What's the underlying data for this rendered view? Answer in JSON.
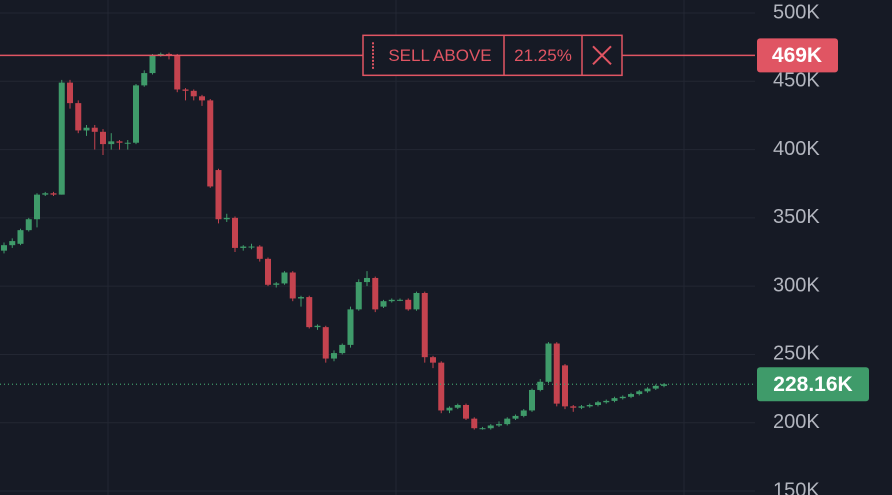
{
  "chart_data": {
    "type": "candlestick",
    "up_color": "#3f9b6a",
    "down_color": "#c4434f",
    "open": [
      326000,
      330000,
      331000,
      341000,
      349000,
      367000,
      368000,
      367000,
      449000,
      434000,
      414000,
      416000,
      413000,
      404000,
      406000,
      405000,
      405000,
      447000,
      456000,
      469000,
      470000,
      469000,
      444000,
      443000,
      439000,
      436000,
      385000,
      349000,
      350000,
      328000,
      329000,
      329000,
      320000,
      301000,
      302000,
      310000,
      291000,
      292000,
      270000,
      270000,
      247000,
      251000,
      257000,
      283000,
      303000,
      306000,
      285000,
      289000,
      290000,
      290000,
      283000,
      295000,
      248000,
      244000,
      209000,
      211000,
      213000,
      203000,
      196000,
      196000,
      198000,
      199000,
      203000,
      205000,
      209000,
      224000,
      230000,
      258000,
      242000,
      212000,
      211000,
      212000,
      213000,
      215000,
      216000,
      218000,
      219000,
      221000,
      223000,
      225000,
      227000
    ],
    "high": [
      332000,
      335000,
      342000,
      350000,
      368000,
      369000,
      369000,
      451000,
      451000,
      436000,
      418000,
      418000,
      415000,
      412000,
      407000,
      407000,
      448000,
      458000,
      470000,
      471000,
      471000,
      470000,
      445000,
      444000,
      440000,
      437000,
      386000,
      353000,
      351000,
      330000,
      331000,
      330000,
      321000,
      303000,
      311000,
      311000,
      293000,
      293000,
      272000,
      271000,
      253000,
      258000,
      285000,
      305000,
      311000,
      307000,
      290000,
      291000,
      291000,
      291000,
      296000,
      296000,
      249000,
      245000,
      212000,
      214000,
      214000,
      204000,
      197000,
      199000,
      201000,
      204000,
      206000,
      210000,
      225000,
      232000,
      259000,
      259000,
      243000,
      213000,
      213000,
      214000,
      216000,
      217000,
      219000,
      220000,
      222000,
      224000,
      226000,
      228000,
      229000
    ],
    "low": [
      324000,
      328000,
      330000,
      340000,
      343000,
      366000,
      366000,
      367000,
      430000,
      412000,
      410000,
      400000,
      396000,
      400000,
      400000,
      400000,
      404000,
      446000,
      455000,
      468000,
      466000,
      442000,
      436000,
      436000,
      432000,
      372000,
      346000,
      347000,
      325000,
      326000,
      327000,
      318000,
      300000,
      299000,
      301000,
      289000,
      285000,
      269000,
      268000,
      244000,
      245000,
      250000,
      255000,
      282000,
      300000,
      281000,
      284000,
      288000,
      289000,
      282000,
      282000,
      244000,
      240000,
      207000,
      207000,
      210000,
      202000,
      195000,
      195000,
      195000,
      197000,
      198000,
      202000,
      204000,
      208000,
      223000,
      229000,
      212000,
      210000,
      208000,
      210000,
      211000,
      212000,
      214000,
      215000,
      217000,
      218000,
      220000,
      222000,
      224000,
      226000
    ],
    "close": [
      330000,
      333000,
      341000,
      349000,
      367000,
      368000,
      367000,
      449000,
      434000,
      414000,
      416000,
      413000,
      404000,
      406000,
      405000,
      405000,
      447000,
      456000,
      469000,
      470000,
      469000,
      444000,
      443000,
      439000,
      436000,
      373000,
      349000,
      350000,
      328000,
      329000,
      329000,
      320000,
      301000,
      302000,
      310000,
      291000,
      292000,
      270000,
      271000,
      247000,
      251000,
      257000,
      283000,
      303000,
      306000,
      283000,
      289000,
      290000,
      290000,
      283000,
      295000,
      248000,
      244000,
      209000,
      211000,
      213000,
      203000,
      196000,
      196000,
      198000,
      199000,
      203000,
      205000,
      209000,
      224000,
      230000,
      258000,
      214000,
      212000,
      211000,
      212000,
      213000,
      215000,
      216000,
      218000,
      219000,
      221000,
      223000,
      225000,
      227000,
      228160
    ],
    "ylim": [
      147100,
      509500
    ],
    "yticks": [
      {
        "value": 150000,
        "label": "150K"
      },
      {
        "value": 200000,
        "label": "200K"
      },
      {
        "value": 250000,
        "label": "250K"
      },
      {
        "value": 300000,
        "label": "300K"
      },
      {
        "value": 350000,
        "label": "350K"
      },
      {
        "value": 400000,
        "label": "400K"
      },
      {
        "value": 450000,
        "label": "450K"
      },
      {
        "value": 500000,
        "label": "500K"
      }
    ],
    "grid": true,
    "order_line": {
      "label": "SELL ABOVE",
      "percent": "21.25%",
      "price": {
        "value": 469000,
        "label": "469K"
      },
      "color": "#e05563"
    },
    "last_price": {
      "value": 228160,
      "label": "228.16K",
      "color": "#3f9b6a"
    }
  }
}
